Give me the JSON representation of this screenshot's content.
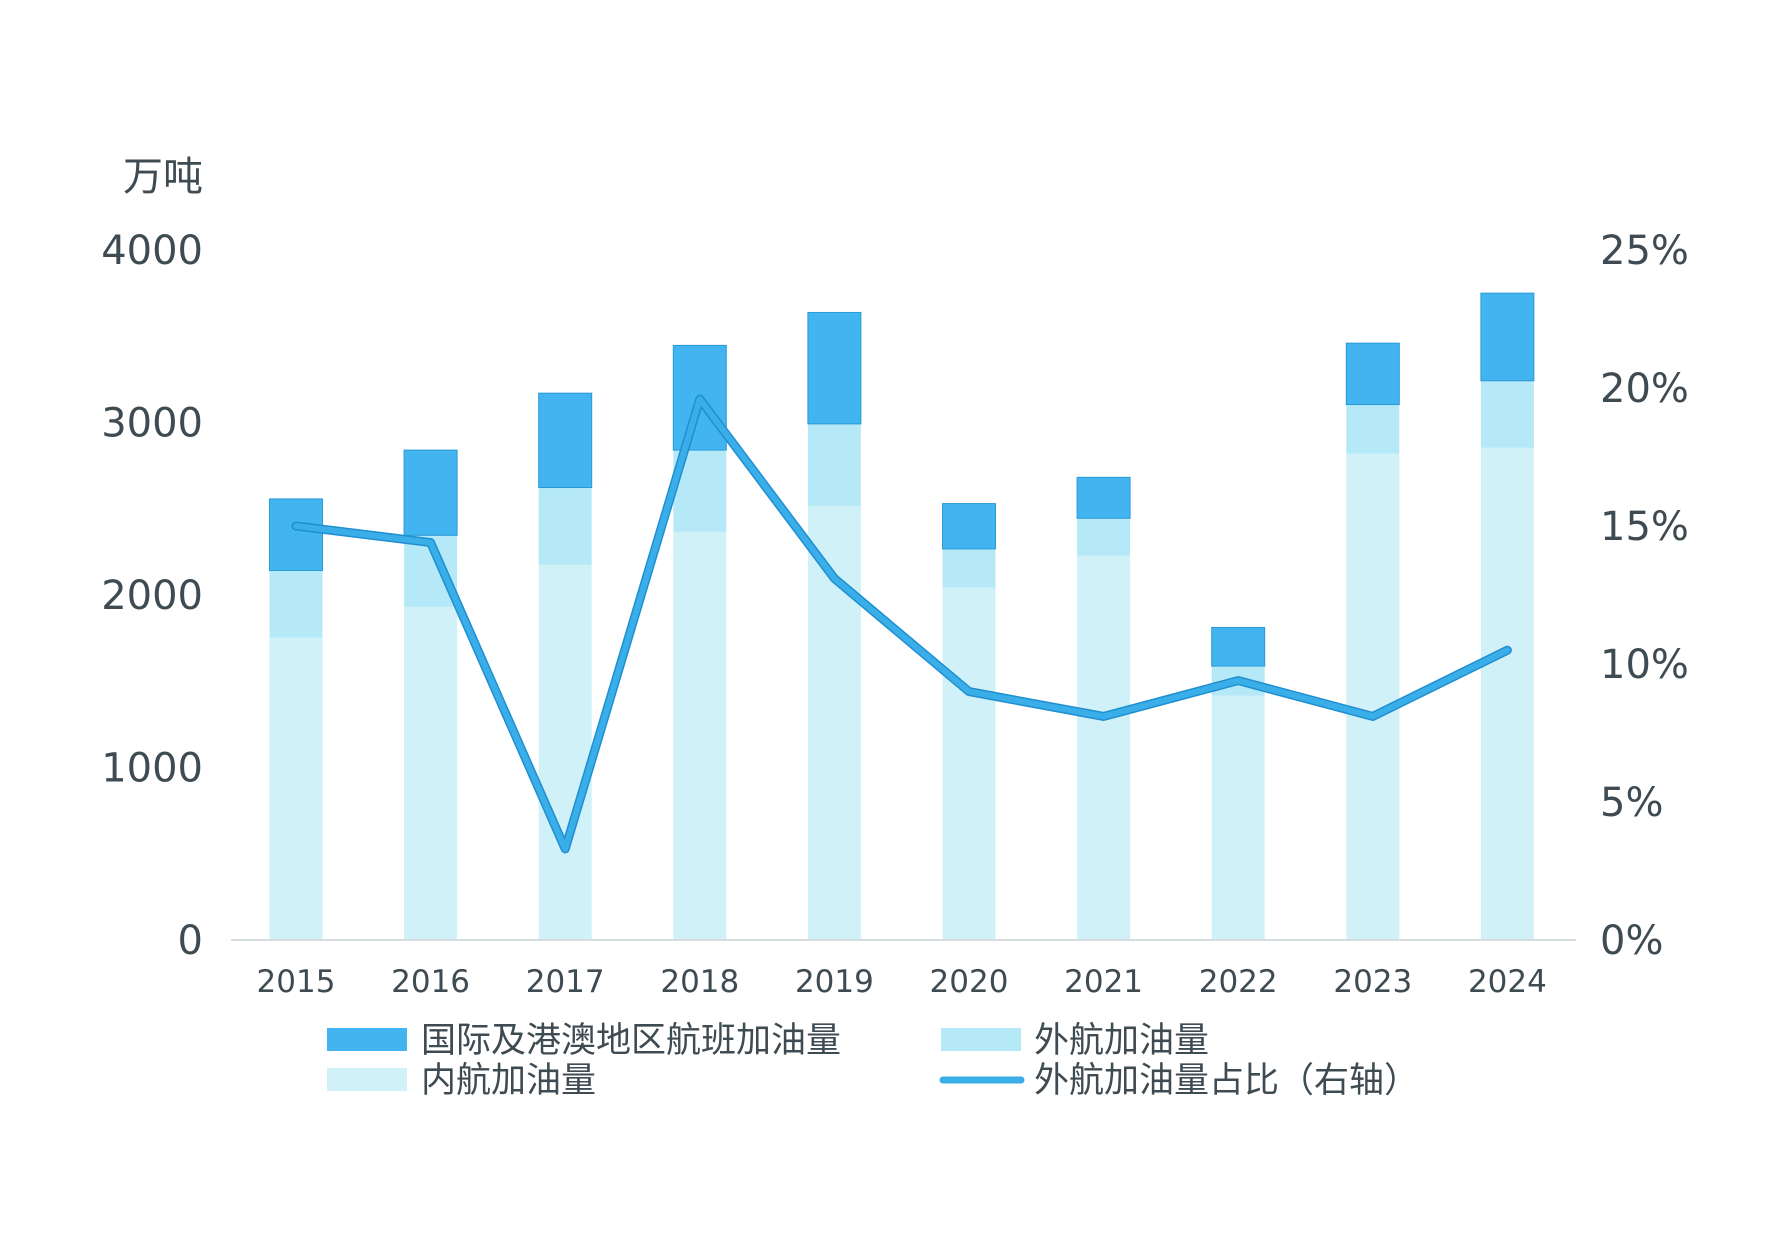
{
  "chart_data": {
    "type": "bar",
    "stacked": true,
    "unit_label": "万吨",
    "categories": [
      "2015",
      "2016",
      "2017",
      "2018",
      "2019",
      "2020",
      "2021",
      "2022",
      "2023",
      "2024"
    ],
    "series": [
      {
        "name": "内航加油量",
        "type": "bar",
        "axis": "left",
        "color": "#d0f1f8",
        "values": [
          1753,
          1931,
          2175,
          2366,
          2517,
          2043,
          2227,
          1417,
          2820,
          2853
        ]
      },
      {
        "name": "外航加油量",
        "type": "bar",
        "axis": "left",
        "color": "#b6e9f8",
        "values": [
          389,
          415,
          448,
          474,
          475,
          224,
          218,
          171,
          284,
          389
        ]
      },
      {
        "name": "国际及港澳地区航班加油量",
        "type": "bar",
        "axis": "left",
        "color": "#42b4f0",
        "values": [
          415,
          494,
          547,
          607,
          646,
          263,
          237,
          224,
          356,
          508
        ]
      },
      {
        "name": "外航加油量占比（右轴）",
        "type": "line",
        "axis": "right",
        "color": "#3aaee9",
        "values": [
          15.0,
          14.4,
          3.3,
          19.6,
          13.1,
          9.0,
          8.1,
          9.4,
          8.1,
          10.5
        ]
      }
    ],
    "left_axis": {
      "ylim": [
        0,
        4000
      ],
      "ticks": [
        "0",
        "1000",
        "2000",
        "3000",
        "4000"
      ]
    },
    "right_axis": {
      "ylim": [
        0,
        25
      ],
      "ticks": [
        "0%",
        "5%",
        "10%",
        "15%",
        "20%",
        "25%"
      ]
    },
    "legend": {
      "position": "bottom",
      "items": [
        "国际及港澳地区航班加油量",
        "外航加油量",
        "内航加油量",
        "外航加油量占比（右轴）"
      ]
    },
    "grid": false
  }
}
